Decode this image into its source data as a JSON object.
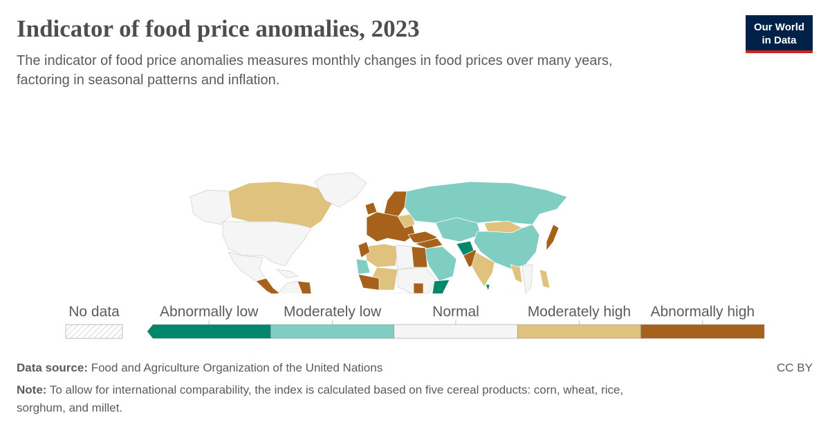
{
  "title": "Indicator of food price anomalies, 2023",
  "subtitle": [
    "The indicator of food price anomalies measures monthly changes in food prices over many years,",
    "factoring in seasonal patterns and inflation."
  ],
  "logo": [
    "Our World",
    "in Data"
  ],
  "legend": {
    "no_data": "No data",
    "bins": [
      {
        "label": "Abnormally low",
        "color": "#00876c"
      },
      {
        "label": "Moderately low",
        "color": "#80cdc1"
      },
      {
        "label": "Normal",
        "color": "#f5f5f5"
      },
      {
        "label": "Moderately high",
        "color": "#dfc27d"
      },
      {
        "label": "Abnormally high",
        "color": "#a6611a"
      }
    ]
  },
  "source": {
    "label": "Data source:",
    "text": "Food and Agriculture Organization of the United Nations"
  },
  "license": "CC BY",
  "note": {
    "label": "Note:",
    "text": [
      "To allow for international comparability, the index is calculated based on five cereal products: corn, wheat, rice,",
      "sorghum, and millet."
    ]
  }
}
